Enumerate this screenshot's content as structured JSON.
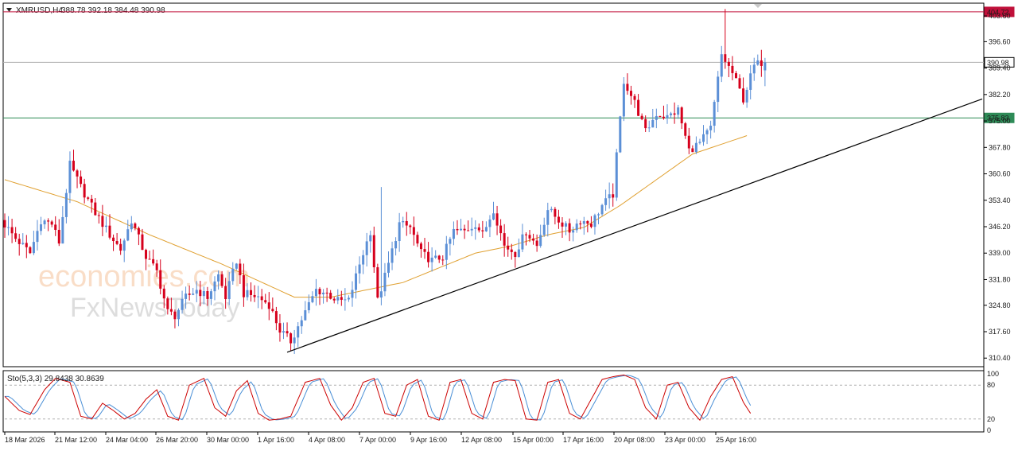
{
  "header": {
    "symbol": "XMRUSD,H4",
    "ohlc": "388.78 392.18 384.48 390.98",
    "menu_icon": "triangle-down-icon"
  },
  "watermark": {
    "line1": "economies.com",
    "line2": "FxNewsToday"
  },
  "colors": {
    "bull": "#5b8fd6",
    "bear": "#d6001c",
    "ma": "#e0a030",
    "resistance": "#c0103a",
    "support": "#2e8b57",
    "current": "#b0b0b0",
    "trendline": "#000000",
    "stoch_main": "#cc0000",
    "stoch_signal": "#4a8fd6"
  },
  "price_axis": {
    "ticks": [
      "403.60",
      "396.60",
      "389.40",
      "382.20",
      "375.00",
      "367.80",
      "360.60",
      "353.40",
      "346.20",
      "339.00",
      "331.80",
      "324.80",
      "317.60",
      "310.40"
    ],
    "range": [
      308.5,
      406
    ]
  },
  "levels": {
    "resistance": {
      "value": 404.72,
      "label": "404.72"
    },
    "current": {
      "value": 390.98,
      "label": "390.98"
    },
    "support": {
      "value": 375.83,
      "label": "375.83"
    }
  },
  "time_axis": {
    "labels": [
      "18 Mar 2026",
      "21 Mar 12:00",
      "24 Mar 04:00",
      "26 Mar 20:00",
      "30 Mar 00:00",
      "1 Apr 16:00",
      "4 Apr 08:00",
      "7 Apr 00:00",
      "9 Apr 16:00",
      "12 Apr 08:00",
      "15 Apr 00:00",
      "17 Apr 16:00",
      "20 Apr 08:00",
      "23 Apr 00:00",
      "25 Apr 16:00"
    ]
  },
  "stochastic": {
    "title": "Sto(5,3,3) 29.8438 30.8639",
    "ticks": [
      "100",
      "80",
      "20",
      "0"
    ],
    "levels": [
      80,
      20
    ]
  },
  "chart_data": {
    "type": "candlestick",
    "title": "XMRUSD,H4",
    "ylim": [
      308.5,
      406
    ],
    "x_labels": [
      "18 Mar 2026",
      "21 Mar 12:00",
      "24 Mar 04:00",
      "26 Mar 20:00",
      "30 Mar 00:00",
      "1 Apr 16:00",
      "4 Apr 08:00",
      "7 Apr 00:00",
      "9 Apr 16:00",
      "12 Apr 08:00",
      "15 Apr 00:00",
      "17 Apr 16:00",
      "20 Apr 08:00",
      "23 Apr 00:00",
      "25 Apr 16:00"
    ],
    "price_path": [
      [
        0,
        348
      ],
      [
        4,
        343
      ],
      [
        8,
        339
      ],
      [
        11,
        348
      ],
      [
        14,
        347
      ],
      [
        16,
        342
      ],
      [
        19,
        363
      ],
      [
        22,
        357
      ],
      [
        26,
        350
      ],
      [
        30,
        344
      ],
      [
        33,
        340
      ],
      [
        36,
        348
      ],
      [
        40,
        338
      ],
      [
        43,
        334
      ],
      [
        46,
        323
      ],
      [
        48,
        322
      ],
      [
        51,
        327
      ],
      [
        54,
        329
      ],
      [
        57,
        327
      ],
      [
        60,
        333
      ],
      [
        62,
        327
      ],
      [
        65,
        337
      ],
      [
        67,
        328
      ],
      [
        71,
        327
      ],
      [
        74,
        325
      ],
      [
        77,
        318
      ],
      [
        80,
        315
      ],
      [
        84,
        323
      ],
      [
        87,
        329
      ],
      [
        90,
        328
      ],
      [
        93,
        326
      ],
      [
        96,
        326
      ],
      [
        99,
        336
      ],
      [
        102,
        345
      ],
      [
        104,
        326
      ],
      [
        107,
        336
      ],
      [
        110,
        347
      ],
      [
        113,
        346
      ],
      [
        116,
        339
      ],
      [
        119,
        337
      ],
      [
        122,
        338
      ],
      [
        125,
        345
      ],
      [
        128,
        345
      ],
      [
        131,
        347
      ],
      [
        133,
        344
      ],
      [
        136,
        351
      ],
      [
        139,
        341
      ],
      [
        142,
        339
      ],
      [
        145,
        345
      ],
      [
        148,
        341
      ],
      [
        151,
        351
      ],
      [
        154,
        348
      ],
      [
        157,
        345
      ],
      [
        160,
        348
      ],
      [
        163,
        347
      ],
      [
        166,
        352
      ],
      [
        169,
        355
      ],
      [
        172,
        386
      ],
      [
        175,
        380
      ],
      [
        178,
        372
      ],
      [
        181,
        377
      ],
      [
        184,
        376
      ],
      [
        187,
        378
      ],
      [
        190,
        367
      ],
      [
        193,
        369
      ],
      [
        196,
        373
      ],
      [
        199,
        393
      ],
      [
        202,
        388
      ],
      [
        205,
        381
      ],
      [
        208,
        390
      ],
      [
        210,
        391
      ]
    ],
    "moving_average": [
      [
        0,
        359
      ],
      [
        20,
        353
      ],
      [
        40,
        344
      ],
      [
        60,
        336
      ],
      [
        80,
        327
      ],
      [
        90,
        327
      ],
      [
        100,
        329
      ],
      [
        110,
        331
      ],
      [
        120,
        335
      ],
      [
        130,
        339
      ],
      [
        140,
        341
      ],
      [
        150,
        344
      ],
      [
        160,
        346
      ],
      [
        170,
        352
      ],
      [
        180,
        359
      ],
      [
        190,
        366
      ],
      [
        205,
        371
      ]
    ],
    "trendline": {
      "from": [
        78,
        312
      ],
      "to": [
        270,
        381
      ]
    },
    "levels": {
      "resistance": 404.72,
      "support": 375.83,
      "current": 390.98
    },
    "last_ohlc": {
      "open": 388.78,
      "high": 392.18,
      "low": 384.48,
      "close": 390.98
    },
    "stochastic_k": [
      [
        0,
        60
      ],
      [
        4,
        35
      ],
      [
        7,
        28
      ],
      [
        11,
        72
      ],
      [
        14,
        92
      ],
      [
        18,
        85
      ],
      [
        21,
        25
      ],
      [
        24,
        20
      ],
      [
        27,
        48
      ],
      [
        30,
        35
      ],
      [
        33,
        20
      ],
      [
        36,
        30
      ],
      [
        39,
        55
      ],
      [
        42,
        72
      ],
      [
        45,
        25
      ],
      [
        48,
        18
      ],
      [
        51,
        80
      ],
      [
        55,
        92
      ],
      [
        58,
        40
      ],
      [
        61,
        25
      ],
      [
        64,
        70
      ],
      [
        67,
        88
      ],
      [
        70,
        30
      ],
      [
        73,
        18
      ],
      [
        76,
        20
      ],
      [
        79,
        25
      ],
      [
        83,
        85
      ],
      [
        87,
        92
      ],
      [
        90,
        45
      ],
      [
        93,
        18
      ],
      [
        96,
        40
      ],
      [
        99,
        85
      ],
      [
        102,
        92
      ],
      [
        105,
        30
      ],
      [
        108,
        25
      ],
      [
        111,
        80
      ],
      [
        114,
        90
      ],
      [
        117,
        25
      ],
      [
        120,
        18
      ],
      [
        123,
        85
      ],
      [
        126,
        90
      ],
      [
        129,
        30
      ],
      [
        132,
        20
      ],
      [
        135,
        85
      ],
      [
        138,
        90
      ],
      [
        141,
        88
      ],
      [
        144,
        20
      ],
      [
        147,
        18
      ],
      [
        150,
        85
      ],
      [
        153,
        90
      ],
      [
        156,
        30
      ],
      [
        159,
        20
      ],
      [
        162,
        55
      ],
      [
        165,
        90
      ],
      [
        168,
        95
      ],
      [
        171,
        98
      ],
      [
        174,
        90
      ],
      [
        177,
        40
      ],
      [
        180,
        20
      ],
      [
        183,
        80
      ],
      [
        186,
        85
      ],
      [
        189,
        40
      ],
      [
        192,
        18
      ],
      [
        195,
        60
      ],
      [
        198,
        90
      ],
      [
        201,
        95
      ],
      [
        204,
        50
      ],
      [
        206,
        30
      ]
    ]
  }
}
